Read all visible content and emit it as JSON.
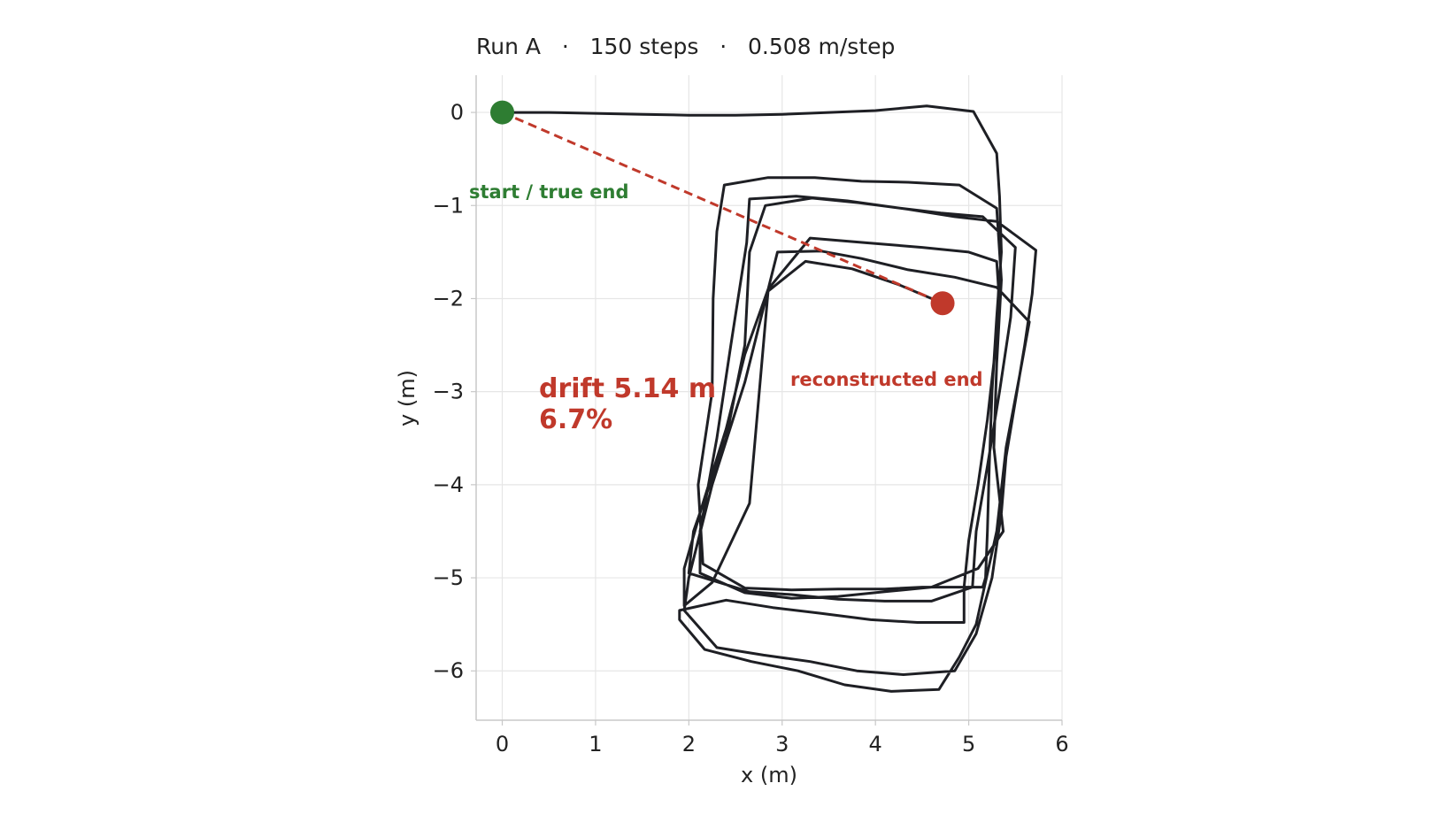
{
  "chart_data": {
    "type": "line",
    "title": "Run A   ·   150 steps   ·   0.508 m/step",
    "xlabel": "x (m)",
    "ylabel": "y (m)",
    "xlim": [
      -0.28,
      6.0
    ],
    "ylim": [
      -6.53,
      0.4
    ],
    "xticks": [
      0,
      1,
      2,
      3,
      4,
      5,
      6
    ],
    "yticks": [
      0,
      -1,
      -2,
      -3,
      -4,
      -5,
      -6
    ],
    "grid": true,
    "colors": {
      "path": "#1e1f24",
      "start": "#2e7d32",
      "end": "#c0392b",
      "grid": "#e6e6e6",
      "axis": "#c8c8c8"
    },
    "series": [
      {
        "values": [
          [
            0,
            0
          ],
          [
            0.5,
            0
          ],
          [
            1.5,
            -0.02
          ],
          [
            2.0,
            -0.03
          ],
          [
            2.5,
            -0.03
          ],
          [
            3.0,
            -0.02
          ],
          [
            3.5,
            0.0
          ],
          [
            4.0,
            0.02
          ],
          [
            4.55,
            0.07
          ],
          [
            5.05,
            0.01
          ],
          [
            5.3,
            -0.44
          ],
          [
            5.33,
            -0.9
          ],
          [
            5.35,
            -1.5
          ],
          [
            5.3,
            -2.2
          ],
          [
            5.25,
            -3.0
          ],
          [
            5.22,
            -3.8
          ],
          [
            5.2,
            -4.5
          ],
          [
            5.18,
            -5.0
          ],
          [
            5.15,
            -5.1
          ],
          [
            4.5,
            -5.1
          ],
          [
            4.1,
            -5.12
          ],
          [
            3.6,
            -5.12
          ],
          [
            3.1,
            -5.13
          ],
          [
            2.6,
            -5.11
          ],
          [
            2.15,
            -4.85
          ],
          [
            2.1,
            -4.0
          ],
          [
            2.25,
            -3.0
          ],
          [
            2.26,
            -2.0
          ],
          [
            2.3,
            -1.28
          ],
          [
            2.38,
            -0.78
          ],
          [
            2.85,
            -0.7
          ],
          [
            3.35,
            -0.7
          ],
          [
            3.85,
            -0.74
          ],
          [
            4.35,
            -0.75
          ],
          [
            4.9,
            -0.78
          ],
          [
            5.3,
            -1.03
          ],
          [
            5.35,
            -1.8
          ],
          [
            5.3,
            -2.7
          ],
          [
            5.27,
            -3.6
          ],
          [
            5.37,
            -4.5
          ],
          [
            5.1,
            -4.9
          ],
          [
            4.6,
            -5.1
          ],
          [
            4.1,
            -5.15
          ],
          [
            3.6,
            -5.2
          ],
          [
            3.1,
            -5.22
          ],
          [
            2.6,
            -5.16
          ],
          [
            2.12,
            -4.95
          ],
          [
            2.12,
            -4.5
          ],
          [
            2.3,
            -3.5
          ],
          [
            2.45,
            -2.5
          ],
          [
            2.62,
            -1.4
          ],
          [
            2.65,
            -0.93
          ],
          [
            3.15,
            -0.9
          ],
          [
            3.7,
            -0.95
          ],
          [
            4.2,
            -1.02
          ],
          [
            4.7,
            -1.08
          ],
          [
            5.15,
            -1.12
          ],
          [
            5.5,
            -1.45
          ],
          [
            5.45,
            -2.2
          ],
          [
            5.33,
            -3.0
          ],
          [
            5.2,
            -3.8
          ],
          [
            5.08,
            -4.5
          ],
          [
            5.04,
            -5.1
          ],
          [
            4.6,
            -5.25
          ],
          [
            4.1,
            -5.25
          ],
          [
            3.6,
            -5.23
          ],
          [
            3.1,
            -5.18
          ],
          [
            2.65,
            -5.15
          ],
          [
            2.0,
            -4.95
          ],
          [
            2.05,
            -4.5
          ],
          [
            2.4,
            -3.5
          ],
          [
            2.6,
            -2.5
          ],
          [
            2.65,
            -1.5
          ],
          [
            2.82,
            -1.0
          ],
          [
            3.32,
            -0.92
          ],
          [
            3.82,
            -0.97
          ],
          [
            4.35,
            -1.04
          ],
          [
            4.85,
            -1.12
          ],
          [
            5.3,
            -1.17
          ],
          [
            5.72,
            -1.48
          ],
          [
            5.68,
            -1.95
          ],
          [
            5.6,
            -2.5
          ],
          [
            5.5,
            -3.1
          ],
          [
            5.4,
            -3.7
          ],
          [
            5.35,
            -4.3
          ],
          [
            5.25,
            -5.0
          ],
          [
            5.08,
            -5.6
          ],
          [
            4.85,
            -6.0
          ],
          [
            4.3,
            -6.04
          ],
          [
            3.8,
            -6.0
          ],
          [
            3.3,
            -5.9
          ],
          [
            2.8,
            -5.83
          ],
          [
            2.3,
            -5.75
          ],
          [
            1.95,
            -5.35
          ],
          [
            2.0,
            -5.0
          ],
          [
            2.25,
            -4.0
          ],
          [
            2.6,
            -2.9
          ],
          [
            2.95,
            -1.5
          ],
          [
            3.42,
            -1.49
          ],
          [
            3.85,
            -1.57
          ],
          [
            4.35,
            -1.69
          ],
          [
            4.85,
            -1.77
          ],
          [
            5.3,
            -1.88
          ],
          [
            5.65,
            -2.25
          ],
          [
            5.55,
            -2.8
          ],
          [
            5.4,
            -3.6
          ],
          [
            5.3,
            -4.5
          ],
          [
            5.08,
            -5.5
          ],
          [
            4.9,
            -5.85
          ],
          [
            4.68,
            -6.2
          ],
          [
            4.17,
            -6.22
          ],
          [
            3.67,
            -6.15
          ],
          [
            3.17,
            -6.0
          ],
          [
            2.67,
            -5.9
          ],
          [
            2.17,
            -5.77
          ],
          [
            1.9,
            -5.45
          ],
          [
            1.9,
            -5.35
          ],
          [
            2.4,
            -5.24
          ],
          [
            2.9,
            -5.32
          ],
          [
            3.4,
            -5.38
          ],
          [
            3.95,
            -5.45
          ],
          [
            4.45,
            -5.48
          ],
          [
            4.95,
            -5.48
          ],
          [
            4.95,
            -5.3
          ],
          [
            4.95,
            -5.1
          ],
          [
            5.0,
            -4.6
          ],
          [
            5.1,
            -4.0
          ],
          [
            5.2,
            -3.3
          ],
          [
            5.29,
            -2.5
          ],
          [
            5.32,
            -1.9
          ],
          [
            5.3,
            -1.6
          ],
          [
            5.0,
            -1.5
          ],
          [
            4.5,
            -1.45
          ],
          [
            3.9,
            -1.4
          ],
          [
            3.3,
            -1.35
          ],
          [
            2.85,
            -1.9
          ],
          [
            2.6,
            -2.6
          ],
          [
            2.4,
            -3.4
          ],
          [
            2.15,
            -4.2
          ],
          [
            1.95,
            -4.9
          ],
          [
            1.95,
            -5.3
          ],
          [
            2.25,
            -5.05
          ],
          [
            2.65,
            -4.2
          ],
          [
            2.85,
            -1.92
          ],
          [
            3.25,
            -1.6
          ],
          [
            3.75,
            -1.68
          ],
          [
            4.25,
            -1.85
          ],
          [
            4.72,
            -2.05
          ]
        ]
      }
    ],
    "start": {
      "x": 0,
      "y": 0,
      "label": "start / true end"
    },
    "end": {
      "x": 4.72,
      "y": -2.05,
      "label": "reconstructed end"
    },
    "drift": {
      "line1": "drift 5.14 m",
      "line2": "6.7%"
    }
  }
}
